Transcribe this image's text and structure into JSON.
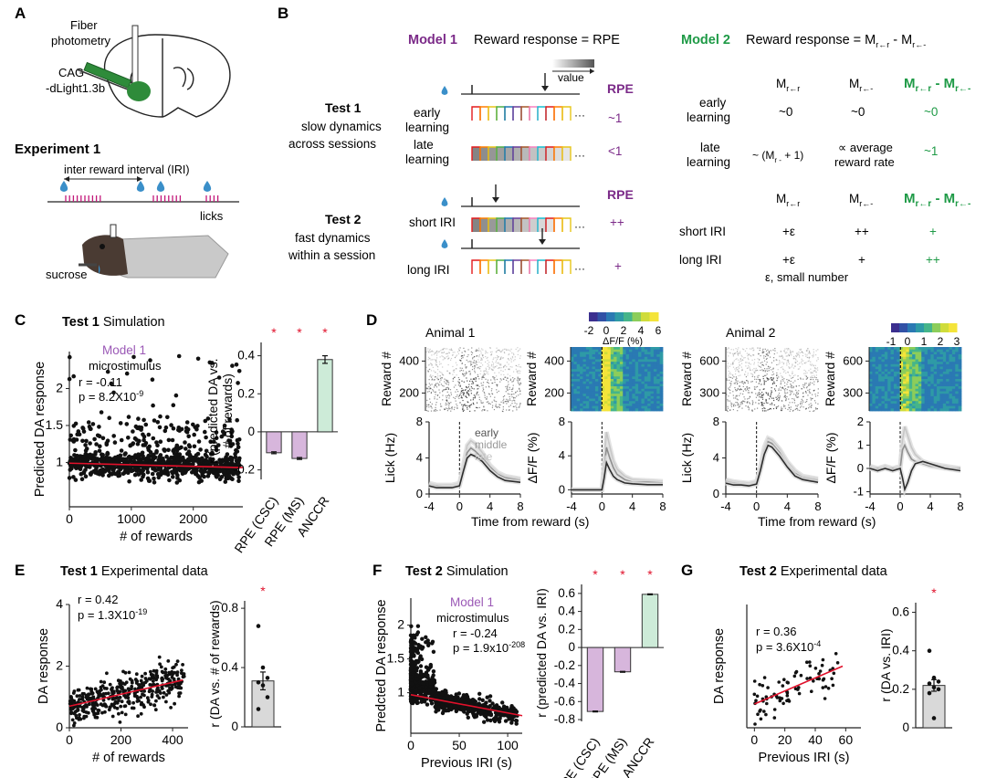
{
  "panel_letters": [
    "A",
    "B",
    "C",
    "D",
    "E",
    "F",
    "G"
  ],
  "panel_a": {
    "fiber_label": "Fiber\nphotometry",
    "virus_label": "CAG\n-dLight1.3b",
    "experiment_title": "Experiment 1",
    "iri_label": "inter reward interval (IRI)",
    "licks_label": "licks",
    "sucrose_label": "sucrose",
    "colors": {
      "lick_tick": "#c2187a",
      "drop": "#3a8fc9",
      "brain_fiber": "#2e8b3a"
    }
  },
  "panel_b": {
    "model1": {
      "name": "Model 1",
      "title": "Reward response = RPE",
      "color": "#7b2a88"
    },
    "model2": {
      "name": "Model 2",
      "title_prefix": "Reward response = M",
      "sub_rr": "r←r",
      "sub_rminus": "r←-",
      "color": "#1e9a46"
    },
    "value_label": "value",
    "test1": {
      "title": "Test 1",
      "desc": "slow dynamics\nacross sessions"
    },
    "test2": {
      "title": "Test 2",
      "desc": "fast dynamics\nwithin a session"
    },
    "rpe_header": "RPE",
    "m1_test1_rows": [
      {
        "label": "early\nlearning",
        "rpe": "~1"
      },
      {
        "label": "late\nlearning",
        "rpe": "<1"
      }
    ],
    "m1_test2_rows": [
      {
        "label": "short IRI",
        "rpe": "++"
      },
      {
        "label": "long IRI",
        "rpe": "+"
      }
    ],
    "m2_cols": [
      "M",
      "M",
      "M  - M"
    ],
    "m2_test1_rows": [
      {
        "label": "early\nlearning",
        "c1": "~0",
        "c2": "~0",
        "c3": "~0"
      },
      {
        "label": "late\nlearning",
        "c1": "~ (M      + 1)",
        "c2": "∝ average\nreward rate",
        "c3": "~1"
      }
    ],
    "m2_test2_rows": [
      {
        "label": "short IRI",
        "c1": "+ε",
        "c2": "++",
        "c3": "+"
      },
      {
        "label": "long IRI",
        "c1": "+ε",
        "c2": "+",
        "c3": "++"
      }
    ],
    "epsilon_note": "ε, small number"
  },
  "panel_c": {
    "title_bold": "Test 1",
    "title_rest": " Simulation",
    "model": "Model 1",
    "model_sub": "microstimulus",
    "r_text": "r = -0.11",
    "p_text": "p = 8.2X10",
    "p_exp": "-9"
  },
  "panel_d": {
    "animal1": "Animal 1",
    "animal2": "Animal 2",
    "colorbar1_ticks": [
      "-2",
      "0",
      "2",
      "4",
      "6"
    ],
    "colorbar_label": "ΔF/F (%)",
    "colorbar2_ticks": [
      "-1",
      "0",
      "1",
      "2",
      "3"
    ],
    "legend": [
      "early",
      "middle",
      "late"
    ],
    "reward_axis": "Reward #",
    "lick_axis": "Lick (Hz)",
    "dff_axis": "ΔF/F (%)",
    "xlabel": "Time from reward (s)",
    "raster1_ticks": [
      "400",
      "200"
    ],
    "raster2_ticks": [
      "600",
      "300"
    ],
    "lick1_yticks": [
      "8",
      "4",
      "0"
    ],
    "dff1_yticks": [
      "8",
      "4",
      "0"
    ],
    "lick2_yticks": [
      "8",
      "4",
      "0"
    ],
    "dff2_yticks": [
      "2",
      "1",
      "0",
      "-1"
    ],
    "xticks": [
      "-4",
      "0",
      "4",
      "8"
    ]
  },
  "panel_e": {
    "title_bold": "Test 1",
    "title_rest": " Experimental data",
    "r_text": "r = 0.42",
    "p_text": "p = 1.3X10",
    "p_exp": "-19"
  },
  "panel_f": {
    "title_bold": "Test 2",
    "title_rest": " Simulation",
    "model": "Model 1",
    "model_sub": "microstimulus",
    "r_text": "r = -0.24",
    "p_text": "p = 1.9x10",
    "p_exp": "-208"
  },
  "panel_g": {
    "title_bold": "Test 2",
    "title_rest": " Experimental data",
    "r_text": "r = 0.36",
    "p_text": "p = 3.6X10",
    "p_exp": "-4"
  },
  "chart_data": [
    {
      "id": "c_scatter",
      "type": "scatter",
      "title": "Test 1 Simulation",
      "xlabel": "# of rewards",
      "ylabel": "Predicted DA response",
      "xlim": [
        0,
        2800
      ],
      "ylim": [
        0.4,
        2.5
      ],
      "xticks": [
        0,
        1000,
        2000
      ],
      "yticks": [
        1,
        1.5,
        2
      ],
      "fit": {
        "x": [
          0,
          2800
        ],
        "y": [
          0.99,
          0.93
        ]
      },
      "n_points": 900
    },
    {
      "id": "c_bar",
      "type": "bar",
      "ylabel": "r (predicted DA vs.\n# of rewards)",
      "categories": [
        "RPE (CSC)",
        "RPE (MS)",
        "ANCCR"
      ],
      "values": [
        -0.11,
        -0.14,
        0.38
      ],
      "errors": [
        0.005,
        0.005,
        0.02
      ],
      "significant": [
        true,
        true,
        true
      ],
      "ylim": [
        -0.25,
        0.47
      ],
      "yticks": [
        -0.2,
        0,
        0.2,
        0.4
      ],
      "colors": [
        "#d7b6dc",
        "#d7b6dc",
        "#cdebd8"
      ]
    },
    {
      "id": "d_lick1",
      "type": "line",
      "xlabel": "Time from reward (s)",
      "ylabel": "Lick (Hz)",
      "xlim": [
        -4,
        8
      ],
      "ylim": [
        0,
        8
      ],
      "series": [
        {
          "name": "early",
          "x": [
            -4,
            -3,
            -2,
            -1,
            0,
            0.5,
            1,
            1.5,
            2,
            3,
            4,
            5,
            6,
            8
          ],
          "y": [
            1.2,
            1.0,
            1.0,
            1.0,
            1.2,
            3.2,
            5.4,
            5.9,
            5.6,
            4.6,
            3.2,
            2.4,
            2.0,
            1.7
          ]
        },
        {
          "name": "middle",
          "x": [
            -4,
            -3,
            -2,
            -1,
            0,
            0.5,
            1,
            1.5,
            2,
            3,
            4,
            5,
            6,
            8
          ],
          "y": [
            1.0,
            0.9,
            0.8,
            0.8,
            1.0,
            2.8,
            4.6,
            5.1,
            4.8,
            4.0,
            3.0,
            2.2,
            1.8,
            1.5
          ]
        },
        {
          "name": "late",
          "x": [
            -4,
            -3,
            -2,
            -1,
            0,
            0.5,
            1,
            1.5,
            2,
            3,
            4,
            5,
            6,
            8
          ],
          "y": [
            0.9,
            0.7,
            0.7,
            0.7,
            0.9,
            2.5,
            4.0,
            4.4,
            4.2,
            3.6,
            2.6,
            1.9,
            1.5,
            1.3
          ]
        }
      ]
    },
    {
      "id": "d_dff1",
      "type": "line",
      "xlabel": "Time from reward (s)",
      "ylabel": "ΔF/F (%)",
      "xlim": [
        -4,
        8
      ],
      "ylim": [
        -0.5,
        8
      ],
      "series": [
        {
          "name": "early",
          "x": [
            -4,
            -2,
            0,
            0.3,
            0.6,
            1,
            1.5,
            2,
            3,
            4,
            6,
            8
          ],
          "y": [
            0,
            0,
            0,
            3.5,
            6.8,
            5.2,
            3.4,
            2.4,
            1.6,
            1.2,
            1.1,
            1.0
          ]
        },
        {
          "name": "middle",
          "x": [
            -4,
            -2,
            0,
            0.3,
            0.6,
            1,
            1.5,
            2,
            3,
            4,
            6,
            8
          ],
          "y": [
            0,
            0,
            0,
            2.5,
            5.0,
            3.8,
            2.6,
            1.8,
            1.2,
            0.9,
            0.9,
            0.8
          ]
        },
        {
          "name": "late",
          "x": [
            -4,
            -2,
            0,
            0.3,
            0.6,
            1,
            1.5,
            2,
            3,
            4,
            6,
            8
          ],
          "y": [
            0,
            0,
            0,
            1.4,
            3.2,
            2.4,
            1.6,
            1.2,
            0.8,
            0.7,
            0.6,
            0.6
          ]
        }
      ]
    },
    {
      "id": "d_lick2",
      "type": "line",
      "xlabel": "Time from reward (s)",
      "ylabel": "Lick (Hz)",
      "xlim": [
        -4,
        8
      ],
      "ylim": [
        0,
        8
      ],
      "series": [
        {
          "name": "early",
          "x": [
            -4,
            -3,
            -2,
            -1,
            0,
            0.5,
            1,
            1.5,
            2,
            3,
            4,
            5,
            6,
            8
          ],
          "y": [
            1.6,
            1.4,
            1.3,
            1.2,
            1.4,
            3.0,
            5.2,
            6.2,
            6.0,
            5.0,
            3.6,
            2.6,
            2.0,
            1.7
          ]
        },
        {
          "name": "middle",
          "x": [
            -4,
            -3,
            -2,
            -1,
            0,
            0.5,
            1,
            1.5,
            2,
            3,
            4,
            5,
            6,
            8
          ],
          "y": [
            1.4,
            1.2,
            1.1,
            1.0,
            1.2,
            2.8,
            4.8,
            5.8,
            5.6,
            4.6,
            3.2,
            2.3,
            1.8,
            1.5
          ]
        },
        {
          "name": "late",
          "x": [
            -4,
            -3,
            -2,
            -1,
            0,
            0.5,
            1,
            1.5,
            2,
            3,
            4,
            5,
            6,
            8
          ],
          "y": [
            1.2,
            1.0,
            1.0,
            0.9,
            1.1,
            2.6,
            4.4,
            5.4,
            5.2,
            4.2,
            3.0,
            2.0,
            1.6,
            1.3
          ]
        }
      ]
    },
    {
      "id": "d_dff2",
      "type": "line",
      "xlabel": "Time from reward (s)",
      "ylabel": "ΔF/F (%)",
      "xlim": [
        -4,
        8
      ],
      "ylim": [
        -1.1,
        2
      ],
      "series": [
        {
          "name": "early",
          "x": [
            -4,
            -3,
            -2,
            -1,
            0,
            0.3,
            0.6,
            1,
            1.5,
            2,
            3,
            4,
            6,
            8
          ],
          "y": [
            0.1,
            0.0,
            0.1,
            0.0,
            0.1,
            1.2,
            1.8,
            1.4,
            0.9,
            0.6,
            0.3,
            0.2,
            0.1,
            0.0
          ]
        },
        {
          "name": "middle",
          "x": [
            -4,
            -3,
            -2,
            -1,
            0,
            0.3,
            0.6,
            1,
            1.5,
            2,
            3,
            4,
            6,
            8
          ],
          "y": [
            0.0,
            0.0,
            0.0,
            0.0,
            0.0,
            0.8,
            1.0,
            0.7,
            0.4,
            0.3,
            0.2,
            0.1,
            0.0,
            0.0
          ]
        },
        {
          "name": "late",
          "x": [
            -4,
            -3,
            -2,
            -1,
            0,
            0.3,
            0.6,
            1,
            1.5,
            2,
            3,
            4,
            6,
            8
          ],
          "y": [
            0.0,
            -0.1,
            0.0,
            -0.1,
            0.0,
            -0.4,
            -0.9,
            -0.6,
            -0.1,
            0.2,
            0.3,
            0.2,
            0.0,
            -0.1
          ]
        }
      ]
    },
    {
      "id": "e_scatter",
      "type": "scatter",
      "xlabel": "# of rewards",
      "ylabel": "DA response",
      "xlim": [
        0,
        460
      ],
      "ylim": [
        0,
        4
      ],
      "xticks": [
        0,
        200,
        400
      ],
      "yticks": [
        0,
        2,
        4
      ],
      "fit": {
        "x": [
          0,
          440
        ],
        "y": [
          0.7,
          1.55
        ]
      },
      "n_points": 420
    },
    {
      "id": "e_bar",
      "type": "bar",
      "ylabel": "r (DA vs. # of rewards)",
      "categories": [
        ""
      ],
      "values": [
        0.31
      ],
      "errors": [
        0.06
      ],
      "significant": [
        true
      ],
      "ylim": [
        0,
        0.85
      ],
      "yticks": [
        0,
        0.4,
        0.8
      ],
      "points": [
        0.68,
        0.4,
        0.33,
        0.3,
        0.28,
        0.2,
        0.12
      ],
      "colors": [
        "#d9d9d9"
      ]
    },
    {
      "id": "f_scatter",
      "type": "scatter",
      "xlabel": "Previous IRI (s)",
      "ylabel": "Predcted DA response",
      "xlim": [
        0,
        115
      ],
      "ylim": [
        0.4,
        2.4
      ],
      "xticks": [
        0,
        50,
        100
      ],
      "yticks": [
        1,
        1.5,
        2
      ],
      "fit": {
        "x": [
          0,
          115
        ],
        "y": [
          0.97,
          0.66
        ]
      },
      "n_points": 900
    },
    {
      "id": "f_bar",
      "type": "bar",
      "ylabel": "r (predicted DA vs. IRI)",
      "categories": [
        "RPE (CSC)",
        "RPE (MS)",
        "ANCCR"
      ],
      "values": [
        -0.71,
        -0.27,
        0.59
      ],
      "errors": [
        0.005,
        0.005,
        0.005
      ],
      "significant": [
        true,
        true,
        true
      ],
      "ylim": [
        -0.82,
        0.7
      ],
      "yticks": [
        -0.8,
        -0.6,
        -0.4,
        -0.2,
        0,
        0.2,
        0.4,
        0.6
      ],
      "colors": [
        "#d7b6dc",
        "#d7b6dc",
        "#cdebd8"
      ]
    },
    {
      "id": "g_scatter",
      "type": "scatter",
      "xlabel": "Previous IRI (s)",
      "ylabel": "DA response",
      "xlim": [
        -5,
        70
      ],
      "ylim": [
        -0.3,
        3.6
      ],
      "xticks": [
        0,
        20,
        40,
        60
      ],
      "yticks": [],
      "fit": {
        "x": [
          0,
          58
        ],
        "y": [
          0.45,
          1.65
        ]
      },
      "n_points": 80
    },
    {
      "id": "g_bar",
      "type": "bar",
      "ylabel": "r (DA vs. IRI)",
      "categories": [
        ""
      ],
      "values": [
        0.22
      ],
      "errors": [
        0.03
      ],
      "significant": [
        true
      ],
      "ylim": [
        0,
        0.65
      ],
      "yticks": [
        0,
        0.2,
        0.4,
        0.6
      ],
      "points": [
        0.4,
        0.26,
        0.24,
        0.23,
        0.21,
        0.2,
        0.18,
        0.05
      ],
      "colors": [
        "#d9d9d9"
      ]
    }
  ]
}
